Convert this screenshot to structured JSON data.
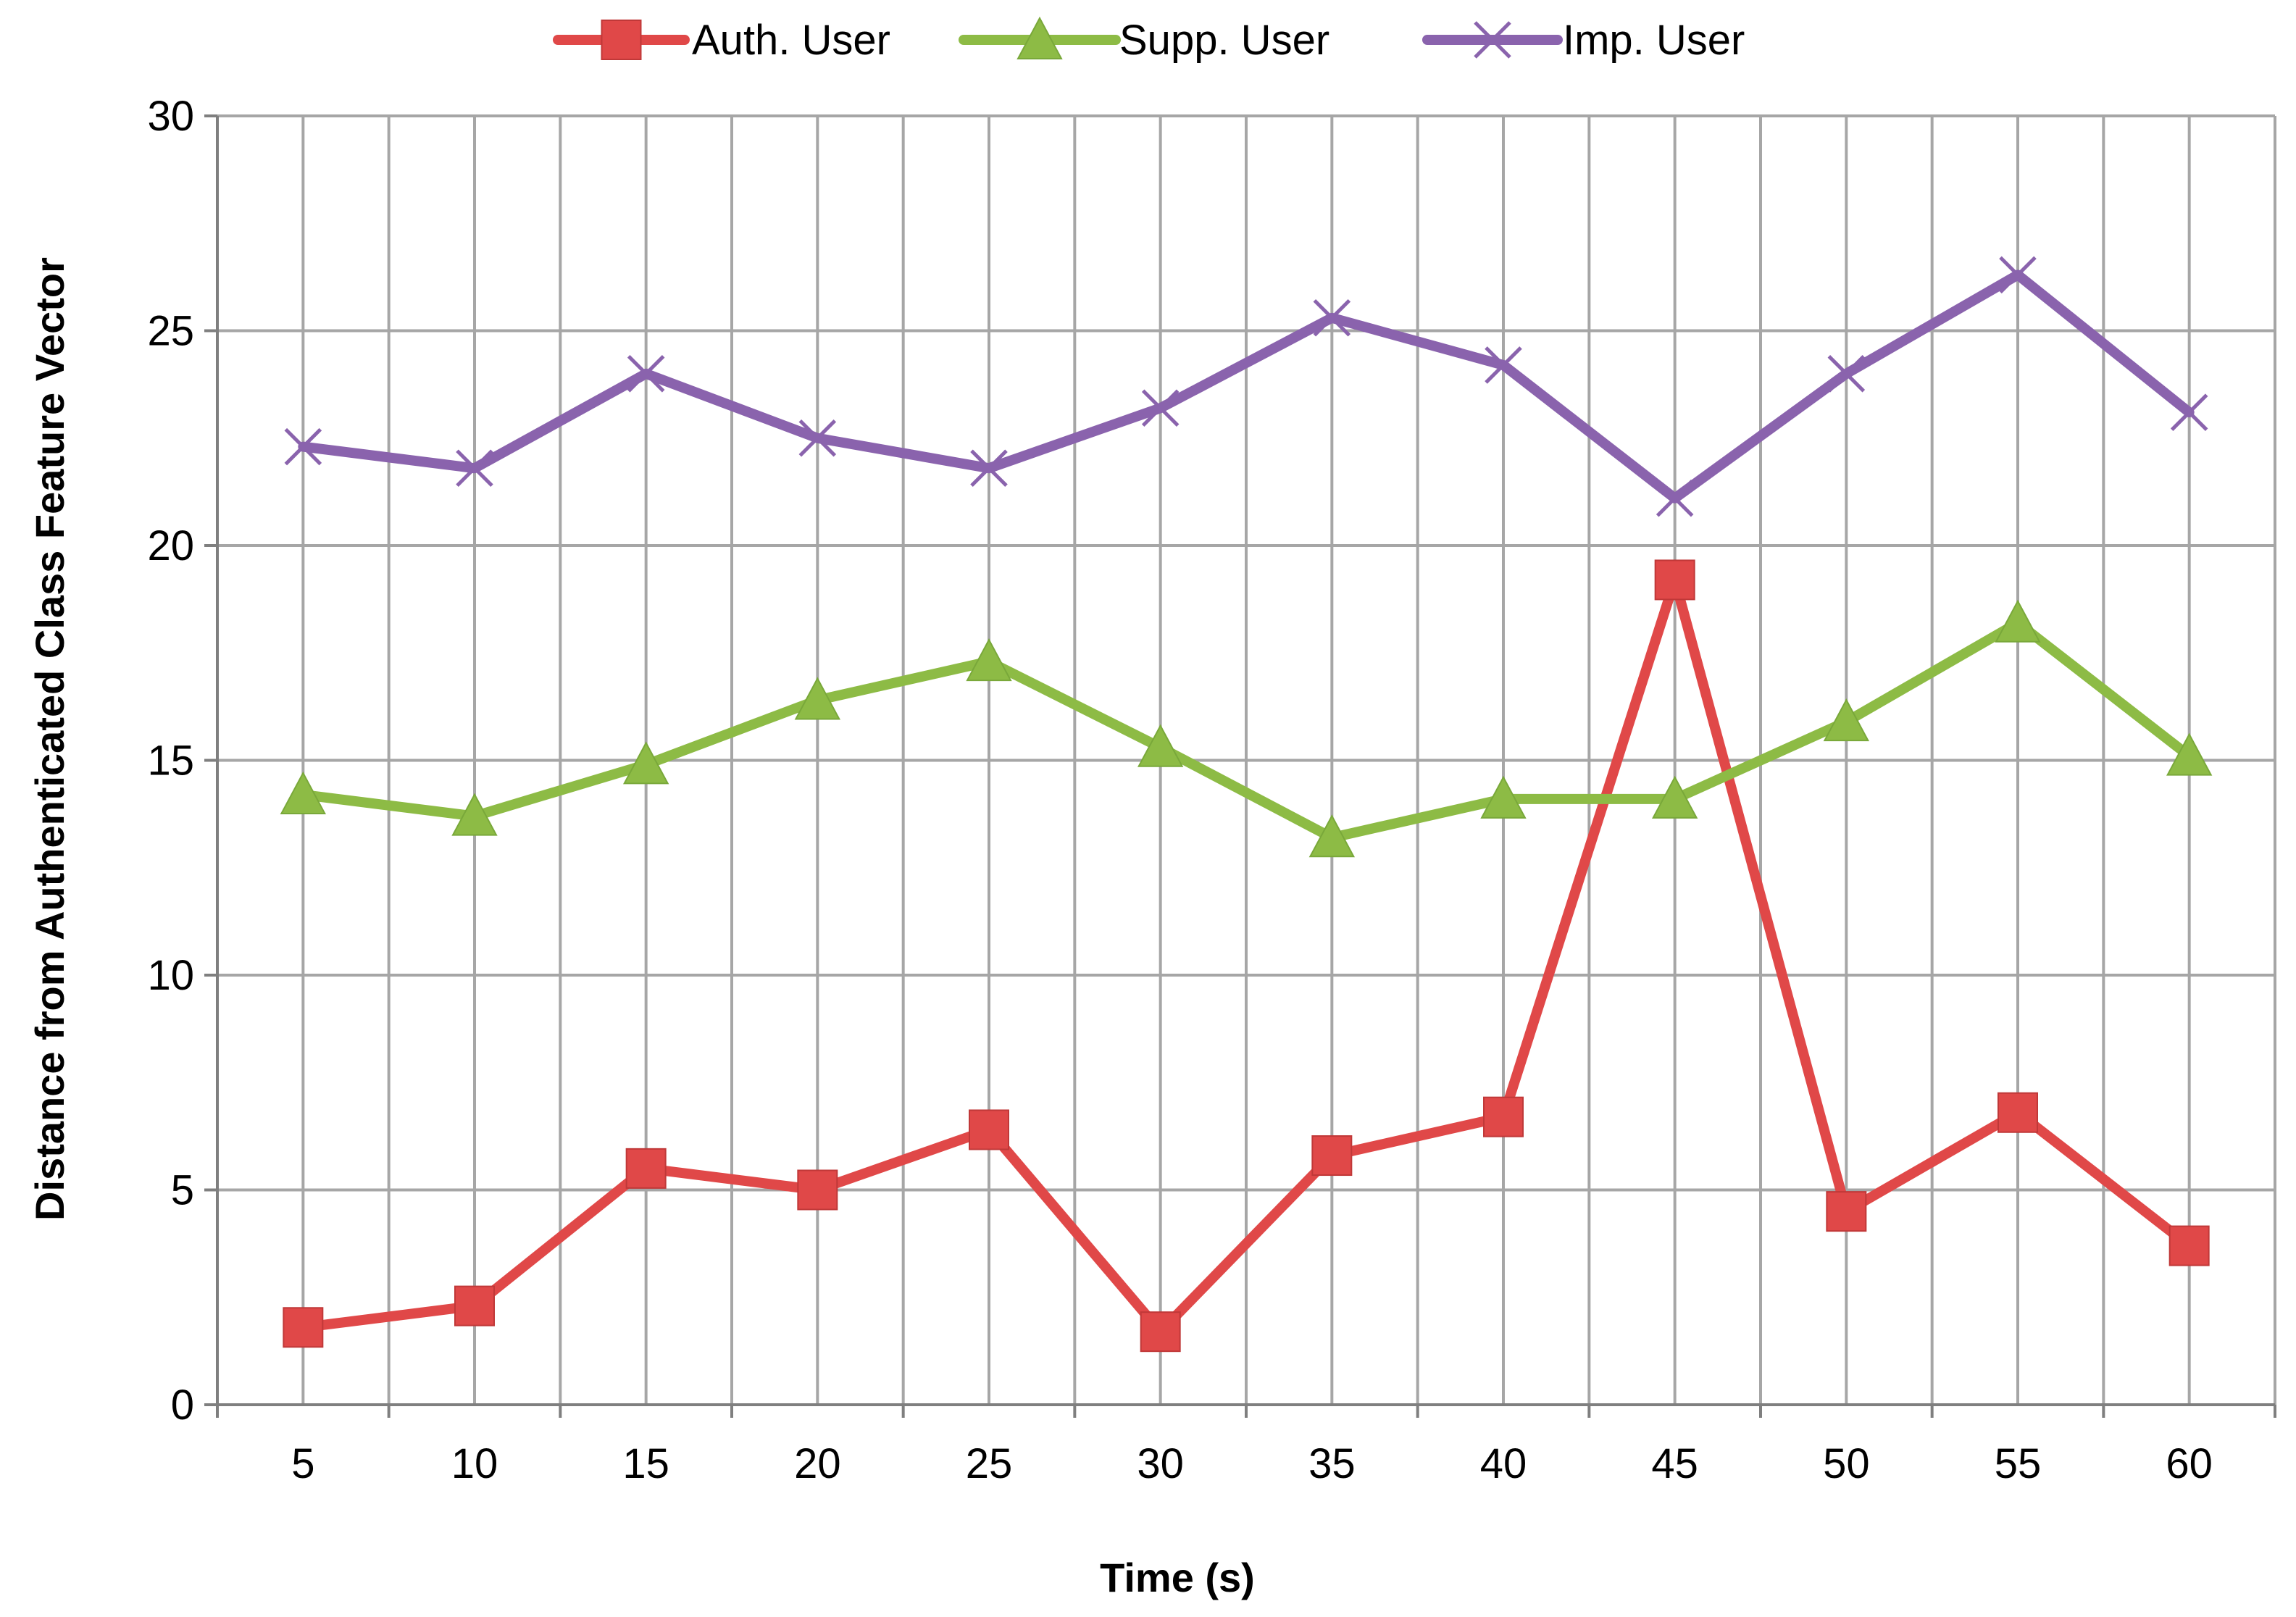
{
  "chart_data": {
    "type": "line",
    "title": "",
    "xlabel": "Time (s)",
    "ylabel": "Distance from Authenticated Class Feature Vector",
    "categories": [
      "5",
      "10",
      "15",
      "20",
      "25",
      "30",
      "35",
      "40",
      "45",
      "50",
      "55",
      "60"
    ],
    "ylim": [
      0,
      30
    ],
    "yticks": [
      0,
      5,
      10,
      15,
      20,
      25,
      30
    ],
    "grid": true,
    "legend_position": "top",
    "series": [
      {
        "name": "Auth. User",
        "color": "#e04848",
        "marker": "square",
        "values": [
          1.8,
          2.3,
          5.5,
          5.0,
          6.4,
          1.7,
          5.8,
          6.7,
          19.2,
          4.5,
          6.8,
          3.7
        ]
      },
      {
        "name": "Supp. User",
        "color": "#8dbb45",
        "marker": "triangle",
        "values": [
          14.2,
          13.7,
          14.9,
          16.4,
          17.3,
          15.3,
          13.2,
          14.1,
          14.1,
          15.9,
          18.2,
          15.1
        ]
      },
      {
        "name": "Imp. User",
        "color": "#8a63ad",
        "marker": "x",
        "values": [
          22.3,
          21.8,
          24.0,
          22.5,
          21.8,
          23.2,
          25.3,
          24.2,
          21.1,
          24.0,
          26.3,
          23.1
        ]
      }
    ]
  }
}
